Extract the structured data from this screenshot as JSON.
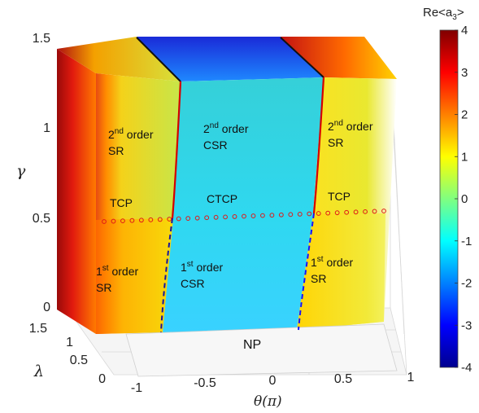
{
  "chart_data": {
    "type": "surface3d",
    "colorbar": {
      "title": "Re<a",
      "title_sub": "3",
      "title_end": ">",
      "min": -4,
      "max": 4,
      "ticks": [
        "4",
        "3",
        "2",
        "1",
        "0",
        "-1",
        "-2",
        "-3",
        "-4"
      ],
      "colormap": "jet"
    },
    "axes": {
      "x": {
        "label": "θ(π)",
        "ticks": [
          "-1",
          "-0.5",
          "0",
          "0.5",
          "1"
        ],
        "range": [
          -1,
          1
        ]
      },
      "y": {
        "label": "λ",
        "ticks": [
          "0",
          "0.5",
          "1",
          "1.5"
        ],
        "range": [
          0,
          1.5
        ]
      },
      "z": {
        "label": "γ",
        "ticks": [
          "0",
          "0.5",
          "1",
          "1.5"
        ],
        "range": [
          0,
          1.5
        ]
      }
    },
    "regions": [
      {
        "id": "sr2-left",
        "line1": "2",
        "sup": "nd",
        "line1_end": " order",
        "line2": "SR"
      },
      {
        "id": "csr2",
        "line1": "2",
        "sup": "nd",
        "line1_end": " order",
        "line2": "CSR"
      },
      {
        "id": "sr2-right",
        "line1": "2",
        "sup": "nd",
        "line1_end": " order",
        "line2": "SR"
      },
      {
        "id": "tcp-left",
        "line1": "TCP"
      },
      {
        "id": "ctcp",
        "line1": "CTCP"
      },
      {
        "id": "tcp-right",
        "line1": "TCP"
      },
      {
        "id": "sr1-left",
        "line1": "1",
        "sup": "st",
        "line1_end": " order",
        "line2": "SR"
      },
      {
        "id": "csr1",
        "line1": "1",
        "sup": "st",
        "line1_end": " order",
        "line2": "CSR"
      },
      {
        "id": "sr1-right",
        "line1": "1",
        "sup": "st",
        "line1_end": " order",
        "line2": "SR"
      },
      {
        "id": "np",
        "line1": "NP"
      }
    ],
    "boundaries": {
      "second_order": "solid red",
      "first_order": "dashed blue",
      "tricritical_line": "red circles at γ = 0.5"
    }
  }
}
